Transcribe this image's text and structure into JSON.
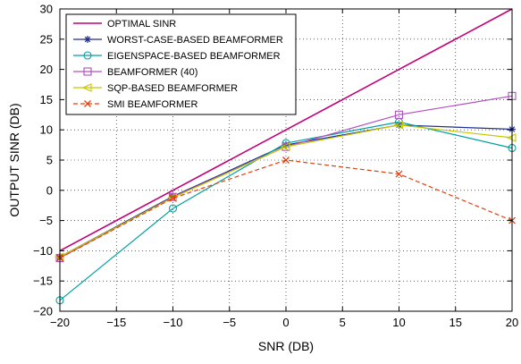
{
  "chart_data": {
    "type": "line",
    "title": "",
    "xlabel": "SNR (DB)",
    "ylabel": "OUTPUT SINR (DB)",
    "xlim": [
      -20,
      20
    ],
    "ylim": [
      -20,
      30
    ],
    "xticks": [
      -20,
      -15,
      -10,
      -5,
      0,
      5,
      10,
      15,
      20
    ],
    "yticks": [
      -20,
      -15,
      -10,
      -5,
      0,
      5,
      10,
      15,
      20,
      25,
      30
    ],
    "xtick_labels": [
      "−20",
      "−15",
      "−10",
      "−5",
      "0",
      "5",
      "10",
      "15",
      "20"
    ],
    "ytick_labels": [
      "−20",
      "−15",
      "−10",
      "−5",
      "0",
      "5",
      "10",
      "15",
      "20",
      "25",
      "30"
    ],
    "grid": true,
    "legend_position": "top-left",
    "x": [
      -20,
      -10,
      0,
      10,
      20
    ],
    "series": [
      {
        "name": "OPTIMAL SINR",
        "values": [
          -10,
          0,
          10,
          20,
          30
        ],
        "color": "#c0007a",
        "marker": "none",
        "dash": "solid"
      },
      {
        "name": "WORST-CASE-BASED BEAMFORMER",
        "values": [
          -11,
          -1,
          7.5,
          10.8,
          10.1
        ],
        "color": "#1f2f8f",
        "marker": "star",
        "dash": "solid"
      },
      {
        "name": "EIGENSPACE-BASED BEAMFORMER",
        "values": [
          -18.2,
          -3,
          7.8,
          11.3,
          7
        ],
        "color": "#00a0a0",
        "marker": "circle",
        "dash": "solid"
      },
      {
        "name": "BEAMFORMER (40)",
        "values": [
          -11.2,
          -1.1,
          7.2,
          12.5,
          15.6
        ],
        "color": "#b050c0",
        "marker": "square",
        "dash": "solid"
      },
      {
        "name": "SQP-BASED BEAMFORMER",
        "values": [
          -11,
          -1.2,
          7.2,
          10.8,
          8.7
        ],
        "color": "#c8c800",
        "marker": "triangle-left",
        "dash": "solid"
      },
      {
        "name": "SMI BEAMFORMER",
        "values": [
          -11.2,
          -1.3,
          5,
          2.7,
          -5
        ],
        "color": "#e04010",
        "marker": "x",
        "dash": "dashed"
      }
    ]
  }
}
